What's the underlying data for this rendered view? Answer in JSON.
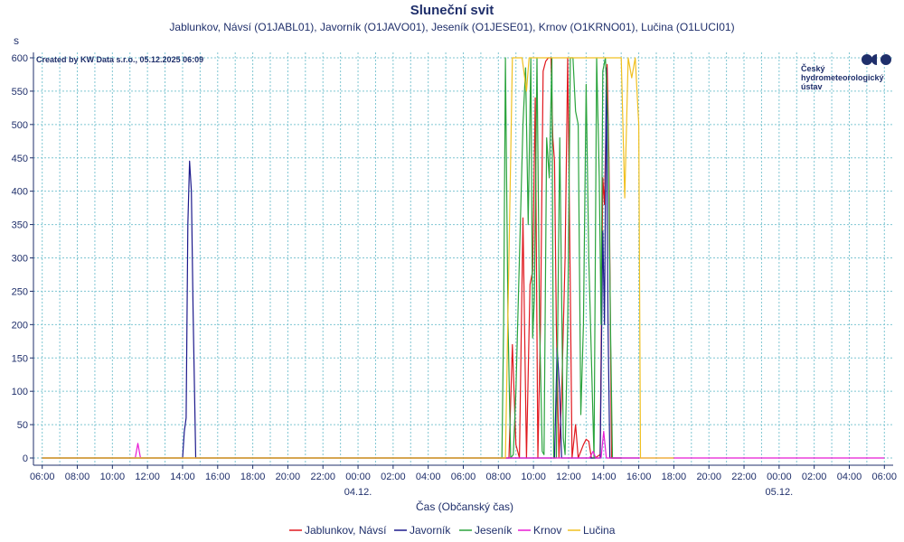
{
  "chart_data": {
    "type": "line",
    "title": "Sluneční svit",
    "subtitle": "Jablunkov, Návsí (O1JABL01), Javorník (O1JAVO01), Jeseník (O1JESE01), Krnov (O1KRNO01), Lučina (O1LUCI01)",
    "ylabel": "s",
    "xlabel": "Čas (Občanský čas)",
    "credit": "Created by KW Data s.r.o., 05.12.2025 06:09",
    "logo_lines": [
      "Český",
      "hydrometeorologický",
      "ústav"
    ],
    "ylim": [
      0,
      600
    ],
    "y_ticks": [
      0,
      50,
      100,
      150,
      200,
      250,
      300,
      350,
      400,
      450,
      500,
      550,
      600
    ],
    "xlim_hours": [
      5.5,
      54.5
    ],
    "x_ticks": [
      {
        "h": 6,
        "label": "06:00"
      },
      {
        "h": 8,
        "label": "08:00"
      },
      {
        "h": 10,
        "label": "10:00"
      },
      {
        "h": 12,
        "label": "12:00"
      },
      {
        "h": 14,
        "label": "14:00"
      },
      {
        "h": 16,
        "label": "16:00"
      },
      {
        "h": 18,
        "label": "18:00"
      },
      {
        "h": 20,
        "label": "20:00"
      },
      {
        "h": 22,
        "label": "22:00"
      },
      {
        "h": 24,
        "label": "00:00"
      },
      {
        "h": 26,
        "label": "02:00"
      },
      {
        "h": 28,
        "label": "04:00"
      },
      {
        "h": 30,
        "label": "06:00"
      },
      {
        "h": 32,
        "label": "08:00"
      },
      {
        "h": 34,
        "label": "10:00"
      },
      {
        "h": 36,
        "label": "12:00"
      },
      {
        "h": 38,
        "label": "14:00"
      },
      {
        "h": 40,
        "label": "16:00"
      },
      {
        "h": 42,
        "label": "18:00"
      },
      {
        "h": 44,
        "label": "20:00"
      },
      {
        "h": 46,
        "label": "22:00"
      },
      {
        "h": 48,
        "label": "00:00"
      },
      {
        "h": 50,
        "label": "02:00"
      },
      {
        "h": 52,
        "label": "04:00"
      },
      {
        "h": 54,
        "label": "06:00"
      }
    ],
    "date_labels": [
      {
        "h": 24,
        "label": "04.12."
      },
      {
        "h": 48,
        "label": "05.12."
      }
    ],
    "grid": true,
    "legend_position": "bottom-center",
    "series": [
      {
        "name": "Jablunkov, Návsí",
        "color": "#e0191f",
        "points": [
          [
            6,
            0
          ],
          [
            32,
            0
          ],
          [
            32.6,
            0
          ],
          [
            32.8,
            170
          ],
          [
            33.0,
            20
          ],
          [
            33.2,
            0
          ],
          [
            33.4,
            360
          ],
          [
            33.6,
            0
          ],
          [
            33.8,
            260
          ],
          [
            33.95,
            280
          ],
          [
            34.1,
            540
          ],
          [
            34.25,
            0
          ],
          [
            34.4,
            200
          ],
          [
            34.55,
            580
          ],
          [
            34.7,
            595
          ],
          [
            34.85,
            600
          ],
          [
            35.0,
            600
          ],
          [
            35.1,
            480
          ],
          [
            35.2,
            445
          ],
          [
            35.3,
            200
          ],
          [
            35.45,
            0
          ],
          [
            35.6,
            90
          ],
          [
            35.8,
            300
          ],
          [
            35.95,
            600
          ],
          [
            36.1,
            250
          ],
          [
            36.2,
            0
          ],
          [
            36.4,
            50
          ],
          [
            36.55,
            0
          ],
          [
            36.7,
            10
          ],
          [
            36.85,
            20
          ],
          [
            37.0,
            28
          ],
          [
            37.15,
            25
          ],
          [
            37.3,
            0
          ],
          [
            37.5,
            0
          ],
          [
            37.8,
            5
          ],
          [
            37.95,
            420
          ],
          [
            38.05,
            380
          ],
          [
            38.2,
            590
          ],
          [
            38.3,
            450
          ],
          [
            38.45,
            0
          ],
          [
            38.6,
            0
          ],
          [
            39,
            0
          ]
        ]
      },
      {
        "name": "Javorník",
        "color": "#1c1a8c",
        "points": [
          [
            6,
            0
          ],
          [
            14.0,
            0
          ],
          [
            14.1,
            40
          ],
          [
            14.2,
            60
          ],
          [
            14.3,
            350
          ],
          [
            14.4,
            445
          ],
          [
            14.5,
            400
          ],
          [
            14.6,
            220
          ],
          [
            14.75,
            0
          ],
          [
            21,
            0
          ],
          [
            35.0,
            0
          ],
          [
            35.2,
            0
          ],
          [
            35.35,
            165
          ],
          [
            35.5,
            100
          ],
          [
            35.6,
            0
          ],
          [
            36,
            0
          ],
          [
            37,
            0
          ],
          [
            37.8,
            0
          ],
          [
            37.95,
            340
          ],
          [
            38.05,
            200
          ],
          [
            38.15,
            585
          ],
          [
            38.25,
            200
          ],
          [
            38.35,
            0
          ],
          [
            40,
            0
          ]
        ]
      },
      {
        "name": "Jeseník",
        "color": "#2aa33c",
        "points": [
          [
            6,
            0
          ],
          [
            32,
            0
          ],
          [
            32.2,
            0
          ],
          [
            32.3,
            200
          ],
          [
            32.4,
            600
          ],
          [
            32.55,
            200
          ],
          [
            32.7,
            0
          ],
          [
            32.85,
            5
          ],
          [
            33.0,
            100
          ],
          [
            33.2,
            300
          ],
          [
            33.4,
            500
          ],
          [
            33.55,
            585
          ],
          [
            33.7,
            350
          ],
          [
            33.85,
            600
          ],
          [
            33.95,
            180
          ],
          [
            34.05,
            240
          ],
          [
            34.2,
            600
          ],
          [
            34.35,
            200
          ],
          [
            34.5,
            10
          ],
          [
            34.6,
            5
          ],
          [
            34.75,
            480
          ],
          [
            34.9,
            420
          ],
          [
            35.05,
            600
          ],
          [
            35.15,
            0
          ],
          [
            35.3,
            0
          ],
          [
            35.5,
            480
          ],
          [
            35.6,
            250
          ],
          [
            35.7,
            30
          ],
          [
            35.8,
            5
          ],
          [
            35.95,
            200
          ],
          [
            36.1,
            600
          ],
          [
            36.25,
            600
          ],
          [
            36.4,
            520
          ],
          [
            36.55,
            500
          ],
          [
            36.7,
            65
          ],
          [
            36.85,
            200
          ],
          [
            37.0,
            560
          ],
          [
            37.15,
            300
          ],
          [
            37.3,
            150
          ],
          [
            37.45,
            0
          ],
          [
            37.6,
            600
          ],
          [
            37.75,
            420
          ],
          [
            37.85,
            200
          ],
          [
            37.95,
            580
          ],
          [
            38.1,
            600
          ],
          [
            38.25,
            500
          ],
          [
            38.4,
            180
          ],
          [
            38.5,
            0
          ],
          [
            39,
            0
          ]
        ]
      },
      {
        "name": "Krnov",
        "color": "#e81ad4",
        "points": [
          [
            6,
            0
          ],
          [
            11.3,
            0
          ],
          [
            11.45,
            22
          ],
          [
            11.6,
            0
          ],
          [
            21,
            0
          ],
          [
            28,
            0
          ],
          [
            37.2,
            0
          ],
          [
            37.4,
            10
          ],
          [
            37.55,
            0
          ],
          [
            37.85,
            0
          ],
          [
            38.0,
            40
          ],
          [
            38.15,
            0
          ],
          [
            42,
            0
          ],
          [
            51.2,
            0
          ],
          [
            54,
            0
          ]
        ]
      },
      {
        "name": "Lučina",
        "color": "#f0c020",
        "points": [
          [
            6,
            0
          ],
          [
            32,
            0
          ],
          [
            32.4,
            0
          ],
          [
            32.6,
            300
          ],
          [
            32.8,
            600
          ],
          [
            33.0,
            600
          ],
          [
            33.2,
            600
          ],
          [
            33.35,
            600
          ],
          [
            33.6,
            550
          ],
          [
            33.75,
            600
          ],
          [
            34.0,
            600
          ],
          [
            34.5,
            600
          ],
          [
            35.0,
            600
          ],
          [
            35.5,
            600
          ],
          [
            36.0,
            600
          ],
          [
            36.5,
            600
          ],
          [
            37.0,
            600
          ],
          [
            37.5,
            600
          ],
          [
            38.0,
            600
          ],
          [
            38.5,
            600
          ],
          [
            39.0,
            600
          ],
          [
            39.2,
            390
          ],
          [
            39.4,
            600
          ],
          [
            39.6,
            570
          ],
          [
            39.8,
            600
          ],
          [
            40.0,
            500
          ],
          [
            40.1,
            0
          ],
          [
            42,
            0
          ]
        ]
      }
    ]
  }
}
